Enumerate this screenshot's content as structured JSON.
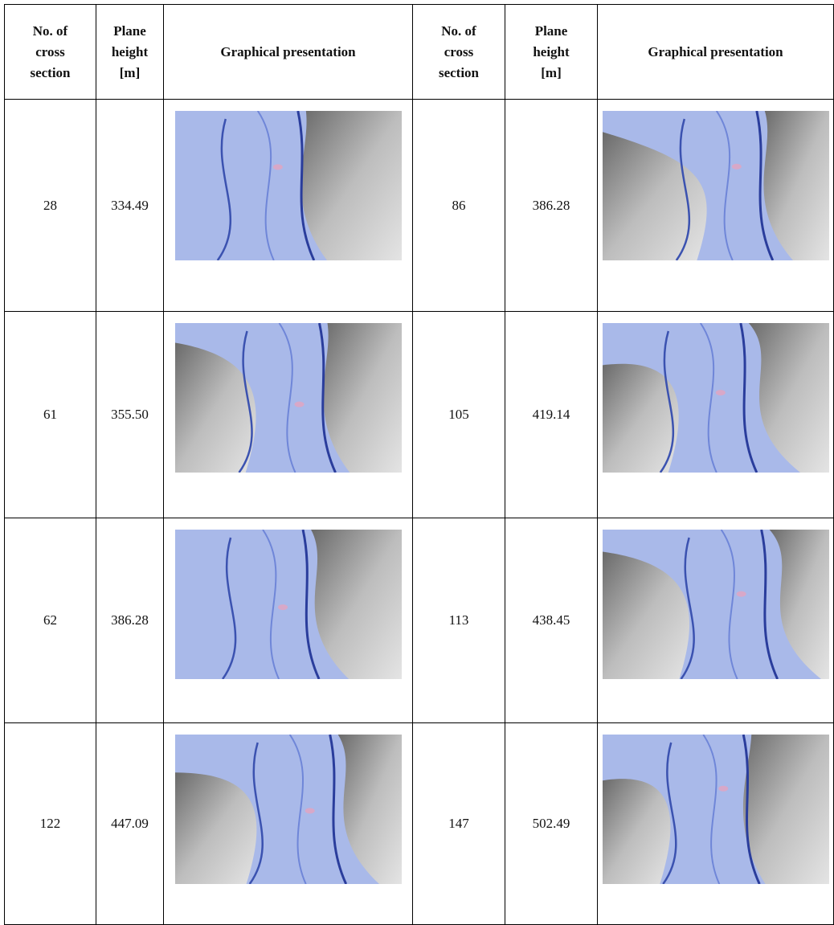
{
  "table": {
    "header": [
      "No. of cross section",
      "Plane height [m]",
      "Graphical presentation",
      "No. of cross section",
      "Plane height [m]",
      "Graphical presentation"
    ],
    "rows": [
      [
        "28",
        "334.49",
        "86",
        "386.28"
      ],
      [
        "61",
        "355.50",
        "105",
        "419.14"
      ],
      [
        "62",
        "386.28",
        "113",
        "438.45"
      ],
      [
        "122",
        "447.09",
        "147",
        "502.49"
      ]
    ]
  }
}
